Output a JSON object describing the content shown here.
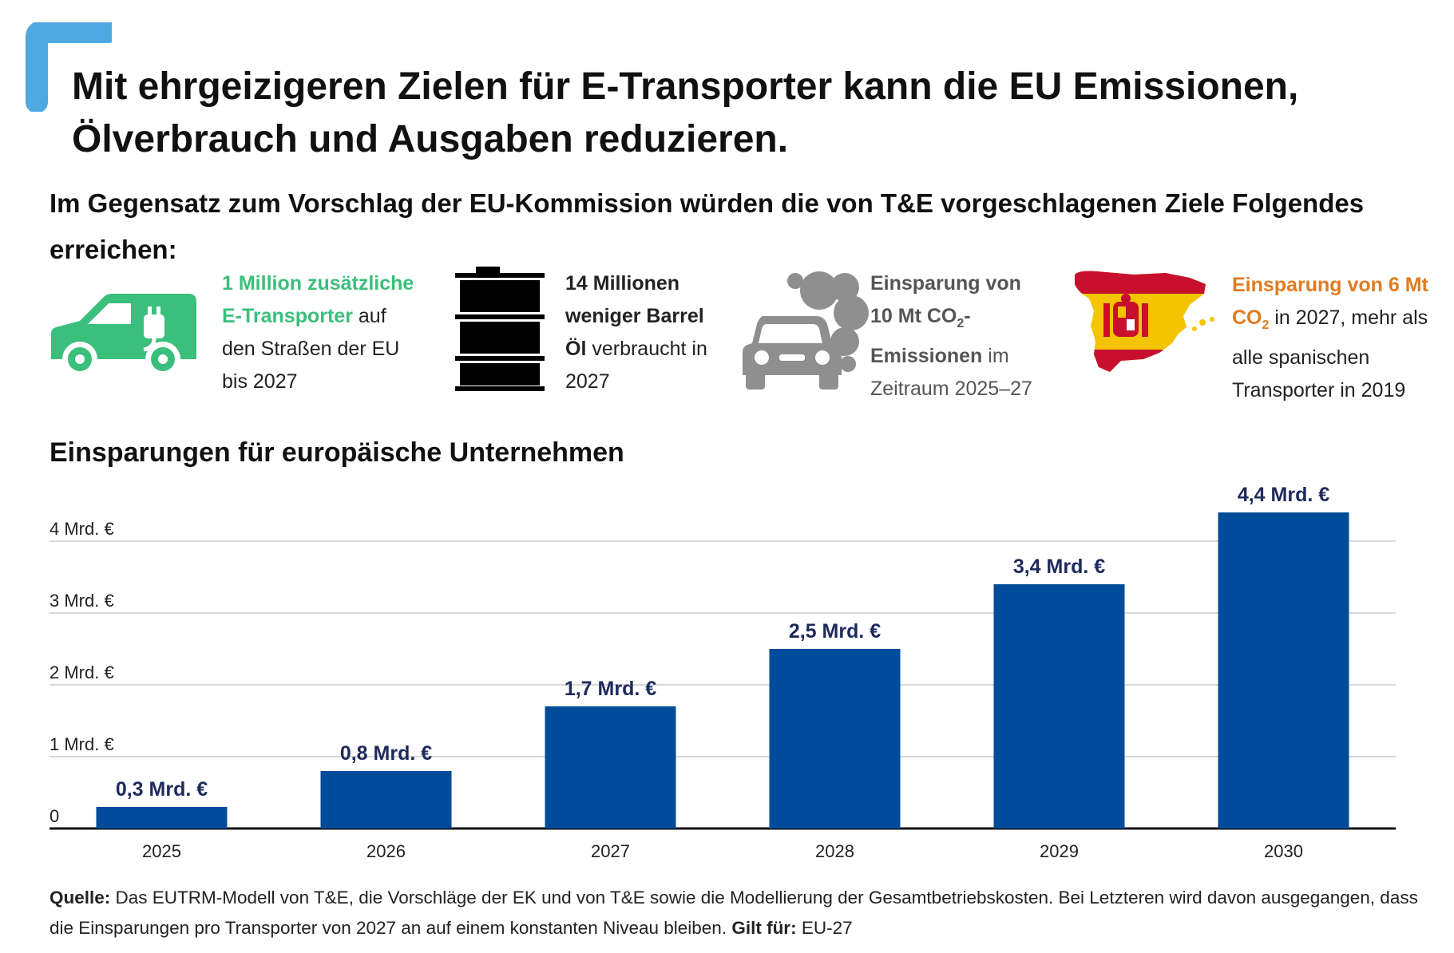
{
  "title_line1": "Mit ehrgeizigeren Zielen für E-Transporter kann die EU Emissionen,",
  "title_line2": "Ölverbrauch und Ausgaben reduzieren.",
  "subtitle": "Im Gegensatz zum Vorschlag der EU-Kommission würden die von T&E vorgeschlagenen Ziele Folgendes erreichen:",
  "facts": {
    "vans": {
      "icon": "electric-van-icon",
      "color": "#3bbf7c",
      "highlight_a": "1 Million zusätzliche",
      "highlight_b": "E-Transporter",
      "text_a": " auf",
      "text_b": "den Straßen der EU",
      "text_c": "bis 2027"
    },
    "oil": {
      "icon": "oil-barrel-icon",
      "color": "#000000",
      "bold_a": "14 Millionen",
      "bold_b": "weniger Barrel",
      "bold_c": "Öl",
      "text_a": " verbraucht in",
      "text_b": "2027"
    },
    "co2": {
      "icon": "polluting-car-icon",
      "color": "#8f8f8f",
      "bold_a": "Einsparung von",
      "bold_b": "10 Mt CO",
      "sub": "2",
      "bold_c": "-",
      "bold_d": "Emissionen",
      "text_a": " im",
      "text_b": "Zeitraum 2025–27"
    },
    "spain": {
      "icon": "spain-map-icon",
      "color": "#e07b22",
      "highlight_a": "Einsparung von 6 Mt",
      "highlight_b": "CO",
      "sub": "2",
      "text_a": " in 2027, mehr als",
      "text_b": "alle spanischen",
      "text_c": "Transporter in 2019"
    }
  },
  "chart_data": {
    "type": "bar",
    "title": "Einsparungen für europäische Unternehmen",
    "categories": [
      "2025",
      "2026",
      "2027",
      "2028",
      "2029",
      "2030"
    ],
    "values": [
      0.3,
      0.8,
      1.7,
      2.5,
      3.4,
      4.4
    ],
    "data_labels": [
      "0,3 Mrd. €",
      "0,8 Mrd. €",
      "1,7 Mrd. €",
      "2,5 Mrd. €",
      "3,4 Mrd. €",
      "4,4 Mrd. €"
    ],
    "y_ticks": [
      0,
      1,
      2,
      3,
      4
    ],
    "y_tick_labels": [
      "0",
      "1 Mrd. €",
      "2 Mrd. €",
      "3 Mrd. €",
      "4 Mrd. €"
    ],
    "ylim": [
      0,
      4.5
    ],
    "grid": true,
    "xlabel": "",
    "ylabel": "",
    "bar_color": "#004c9a",
    "label_color": "#1e2a5c"
  },
  "source": {
    "label": "Quelle:",
    "text": " Das EUTRM-Modell von T&E, die Vorschläge der EK und von T&E sowie die Modellierung der Gesamtbetriebskosten. Bei Letzteren wird davon ausgegangen, dass die Einsparungen pro Transporter von 2027 an auf einem konstanten Niveau bleiben. ",
    "scope_label": "Gilt für:",
    "scope_text": " EU-27"
  },
  "colors": {
    "accent": "#4fa8e0",
    "grid": "#cccccc",
    "axis": "#111111"
  }
}
